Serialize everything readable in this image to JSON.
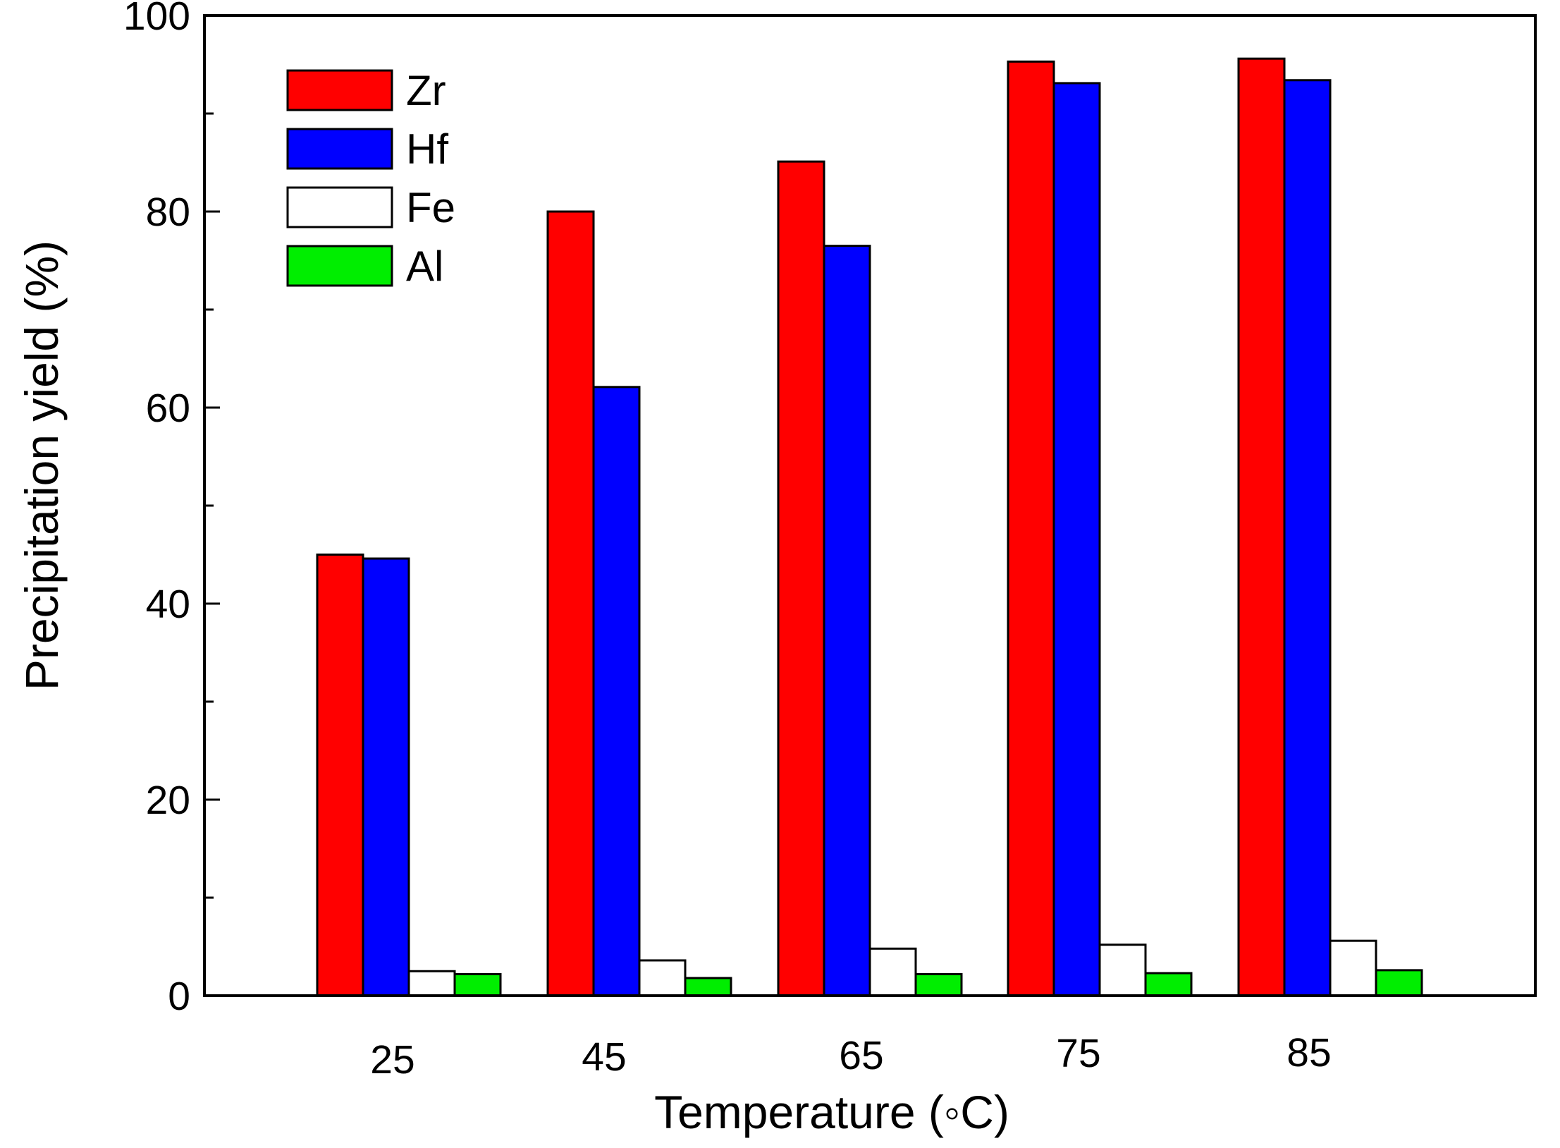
{
  "chart_data": {
    "type": "bar",
    "title": "",
    "xlabel": "Temperature (◦C)",
    "ylabel": "Precipitation yield (%)",
    "categories": [
      "25",
      "45",
      "65",
      "75",
      "85"
    ],
    "ylim": [
      0,
      100
    ],
    "yticks": [
      "0",
      "20",
      "40",
      "60",
      "80",
      "100"
    ],
    "grid": false,
    "legend_position": "top-left",
    "series": [
      {
        "name": "Zr",
        "color": "#ff0000",
        "values": [
          45.0,
          80.0,
          85.1,
          95.3,
          95.6
        ]
      },
      {
        "name": "Hf",
        "color": "#0000ff",
        "values": [
          44.6,
          62.1,
          76.5,
          93.1,
          93.4
        ]
      },
      {
        "name": "Fe",
        "color": "#ffffff",
        "values": [
          2.5,
          3.6,
          4.8,
          5.2,
          5.6
        ]
      },
      {
        "name": "Al",
        "color": "#00ee00",
        "values": [
          2.2,
          1.8,
          2.2,
          2.3,
          2.6
        ]
      }
    ]
  }
}
